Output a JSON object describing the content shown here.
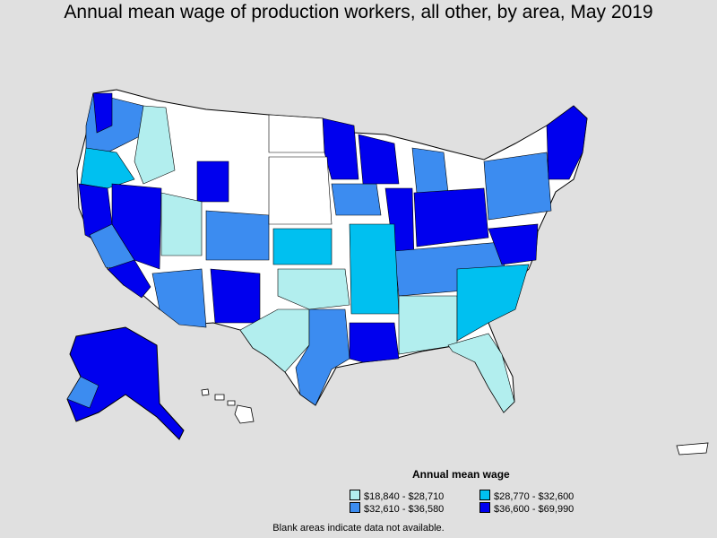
{
  "title": "Annual mean wage of production workers, all other, by area, May 2019",
  "legend": {
    "title": "Annual mean wage",
    "items": [
      {
        "label": "$18,840 - $28,710",
        "color": "#b2eeee"
      },
      {
        "label": "$28,770 - $32,600",
        "color": "#00c0f0"
      },
      {
        "label": "$32,610 - $36,580",
        "color": "#3c8cf0"
      },
      {
        "label": "$36,600 - $69,990",
        "color": "#0000ee"
      }
    ]
  },
  "note": "Blank areas indicate data not available.",
  "colors": {
    "background": "#e0e0e0",
    "no_data": "#ffffff",
    "border": "#000000"
  }
}
